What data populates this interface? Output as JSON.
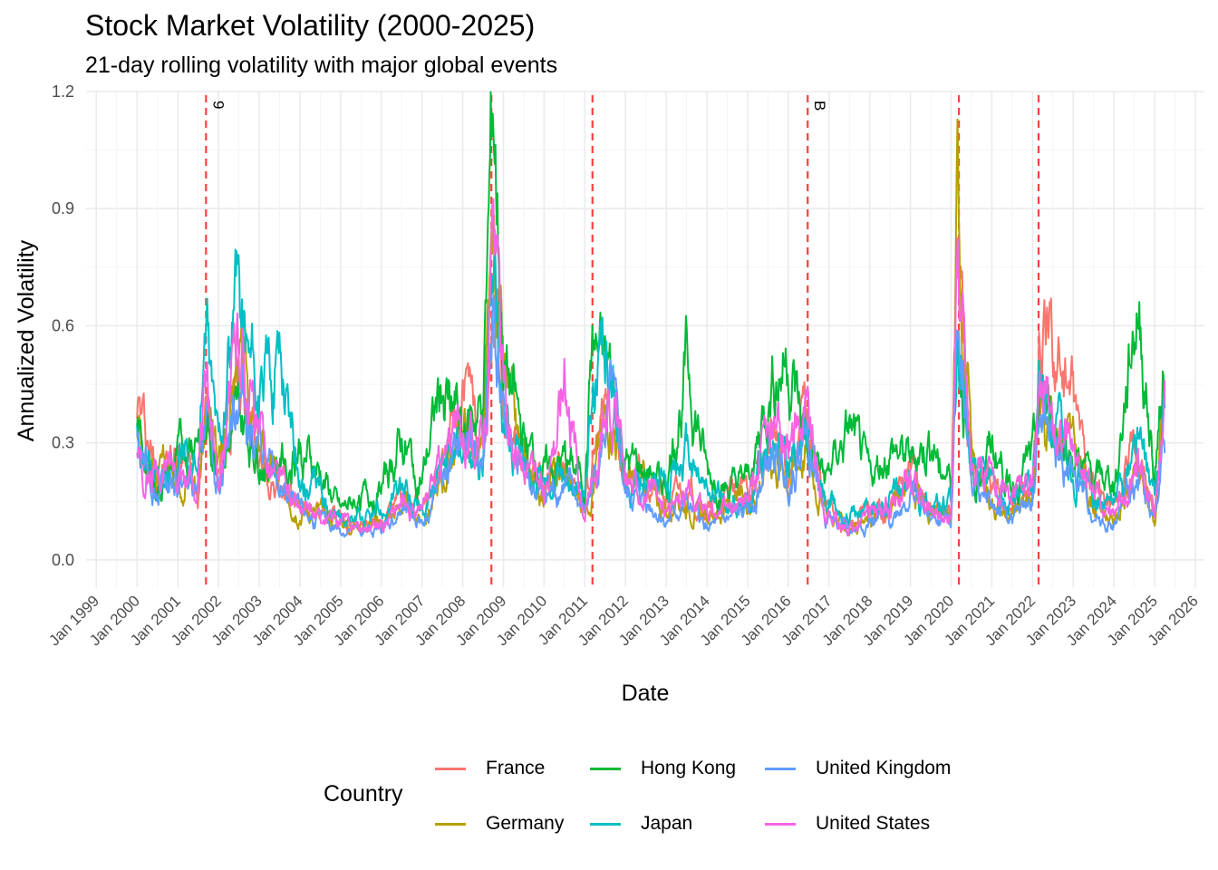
{
  "chart_data": {
    "type": "line",
    "title": "Stock Market Volatility (2000-2025)",
    "subtitle": "21-day rolling volatility with major global events",
    "xlabel": "Date",
    "ylabel": "Annualized Volatility",
    "xlim": [
      "1998-10-01",
      "2026-03-15"
    ],
    "ylim": [
      -0.07,
      1.2
    ],
    "yticks": [
      0.0,
      0.3,
      0.6,
      0.9,
      1.2
    ],
    "ytick_labels": [
      "0.0",
      "0.3",
      "0.6",
      "0.9",
      "1.2"
    ],
    "xticks": [
      "1999-01-01",
      "2000-01-01",
      "2001-01-01",
      "2002-01-01",
      "2003-01-01",
      "2004-01-01",
      "2005-01-01",
      "2006-01-01",
      "2007-01-01",
      "2008-01-01",
      "2009-01-01",
      "2010-01-01",
      "2011-01-01",
      "2012-01-01",
      "2013-01-01",
      "2014-01-01",
      "2015-01-01",
      "2016-01-01",
      "2017-01-01",
      "2018-01-01",
      "2019-01-01",
      "2020-01-01",
      "2021-01-01",
      "2022-01-01",
      "2023-01-01",
      "2024-01-01",
      "2025-01-01",
      "2026-01-01"
    ],
    "xtick_labels": [
      "Jan 1999",
      "Jan 2000",
      "Jan 2001",
      "Jan 2002",
      "Jan 2003",
      "Jan 2004",
      "Jan 2005",
      "Jan 2006",
      "Jan 2007",
      "Jan 2008",
      "Jan 2009",
      "Jan 2010",
      "Jan 2011",
      "Jan 2012",
      "Jan 2013",
      "Jan 2014",
      "Jan 2015",
      "Jan 2016",
      "Jan 2017",
      "Jan 2018",
      "Jan 2019",
      "Jan 2020",
      "Jan 2021",
      "Jan 2022",
      "Jan 2023",
      "Jan 2024",
      "Jan 2025",
      "Jan 2026"
    ],
    "grid": true,
    "legend": {
      "title": "Country",
      "placement": "bottom"
    },
    "event_lines": [
      {
        "date": "2001-09-11",
        "label": "9"
      },
      {
        "date": "2008-09-15",
        "label": ""
      },
      {
        "date": "2011-03-11",
        "label": ""
      },
      {
        "date": "2016-06-23",
        "label": "B"
      },
      {
        "date": "2020-03-11",
        "label": ""
      },
      {
        "date": "2022-02-24",
        "label": ""
      }
    ],
    "event_line_color": "#F8423F",
    "x": [
      "2000-01",
      "2000-07",
      "2001-01",
      "2001-07",
      "2001-09",
      "2002-01",
      "2002-07",
      "2003-01",
      "2003-07",
      "2004-01",
      "2004-07",
      "2005-01",
      "2005-07",
      "2006-01",
      "2006-07",
      "2007-01",
      "2007-07",
      "2008-01",
      "2008-07",
      "2008-10",
      "2009-01",
      "2009-07",
      "2010-01",
      "2010-07",
      "2011-01",
      "2011-03",
      "2011-09",
      "2012-01",
      "2012-07",
      "2013-01",
      "2013-07",
      "2014-01",
      "2014-07",
      "2015-01",
      "2015-08",
      "2016-01",
      "2016-06",
      "2016-12",
      "2017-07",
      "2018-01",
      "2018-07",
      "2019-01",
      "2019-07",
      "2020-01",
      "2020-03",
      "2020-07",
      "2021-01",
      "2021-07",
      "2022-01",
      "2022-03",
      "2022-10",
      "2023-07",
      "2024-01",
      "2024-08",
      "2025-01",
      "2025-04"
    ],
    "series": [
      {
        "name": "France",
        "color": "#F8766D",
        "values": [
          0.41,
          0.22,
          0.28,
          0.2,
          0.42,
          0.22,
          0.48,
          0.25,
          0.18,
          0.14,
          0.12,
          0.1,
          0.09,
          0.1,
          0.16,
          0.12,
          0.25,
          0.42,
          0.3,
          0.72,
          0.4,
          0.22,
          0.2,
          0.25,
          0.16,
          0.22,
          0.45,
          0.2,
          0.22,
          0.15,
          0.18,
          0.12,
          0.16,
          0.18,
          0.3,
          0.25,
          0.38,
          0.14,
          0.09,
          0.12,
          0.14,
          0.22,
          0.14,
          0.12,
          0.85,
          0.25,
          0.18,
          0.13,
          0.2,
          0.56,
          0.5,
          0.18,
          0.14,
          0.3,
          0.12,
          0.52
        ]
      },
      {
        "name": "Germany",
        "color": "#B79F00",
        "values": [
          0.35,
          0.2,
          0.26,
          0.2,
          0.4,
          0.24,
          0.52,
          0.28,
          0.2,
          0.14,
          0.12,
          0.1,
          0.09,
          0.09,
          0.14,
          0.1,
          0.2,
          0.35,
          0.25,
          0.82,
          0.45,
          0.24,
          0.18,
          0.22,
          0.14,
          0.2,
          0.42,
          0.18,
          0.2,
          0.12,
          0.15,
          0.1,
          0.14,
          0.15,
          0.28,
          0.22,
          0.3,
          0.12,
          0.08,
          0.1,
          0.12,
          0.2,
          0.12,
          0.1,
          0.97,
          0.25,
          0.16,
          0.1,
          0.18,
          0.42,
          0.35,
          0.15,
          0.1,
          0.22,
          0.1,
          0.48
        ]
      },
      {
        "name": "Hong Kong",
        "color": "#00BA38",
        "values": [
          0.34,
          0.18,
          0.25,
          0.35,
          0.34,
          0.25,
          0.35,
          0.28,
          0.25,
          0.3,
          0.22,
          0.12,
          0.16,
          0.18,
          0.3,
          0.2,
          0.45,
          0.35,
          0.38,
          1.16,
          0.5,
          0.3,
          0.22,
          0.25,
          0.2,
          0.54,
          0.45,
          0.25,
          0.22,
          0.2,
          0.5,
          0.22,
          0.18,
          0.2,
          0.46,
          0.52,
          0.3,
          0.2,
          0.33,
          0.2,
          0.28,
          0.25,
          0.3,
          0.2,
          0.6,
          0.22,
          0.28,
          0.2,
          0.25,
          0.4,
          0.3,
          0.2,
          0.2,
          0.66,
          0.2,
          0.56
        ]
      },
      {
        "name": "Japan",
        "color": "#00BFC4",
        "values": [
          0.32,
          0.2,
          0.25,
          0.25,
          0.58,
          0.3,
          0.68,
          0.4,
          0.55,
          0.2,
          0.18,
          0.1,
          0.1,
          0.12,
          0.18,
          0.12,
          0.2,
          0.28,
          0.25,
          0.75,
          0.4,
          0.24,
          0.2,
          0.22,
          0.16,
          0.45,
          0.52,
          0.22,
          0.2,
          0.18,
          0.28,
          0.18,
          0.14,
          0.15,
          0.32,
          0.28,
          0.32,
          0.15,
          0.12,
          0.14,
          0.15,
          0.2,
          0.14,
          0.14,
          0.55,
          0.22,
          0.18,
          0.14,
          0.2,
          0.46,
          0.3,
          0.16,
          0.14,
          0.32,
          0.15,
          0.38
        ]
      },
      {
        "name": "United Kingdom",
        "color": "#619CFF",
        "values": [
          0.28,
          0.18,
          0.2,
          0.18,
          0.35,
          0.2,
          0.45,
          0.28,
          0.18,
          0.12,
          0.1,
          0.08,
          0.07,
          0.08,
          0.12,
          0.1,
          0.2,
          0.3,
          0.25,
          0.65,
          0.35,
          0.2,
          0.16,
          0.2,
          0.12,
          0.18,
          0.4,
          0.16,
          0.16,
          0.1,
          0.14,
          0.08,
          0.1,
          0.12,
          0.26,
          0.2,
          0.35,
          0.12,
          0.07,
          0.1,
          0.1,
          0.18,
          0.1,
          0.1,
          0.7,
          0.2,
          0.14,
          0.1,
          0.15,
          0.35,
          0.25,
          0.12,
          0.08,
          0.22,
          0.1,
          0.3
        ]
      },
      {
        "name": "United States",
        "color": "#F564E3",
        "values": [
          0.3,
          0.2,
          0.25,
          0.18,
          0.45,
          0.25,
          0.58,
          0.3,
          0.2,
          0.12,
          0.1,
          0.1,
          0.08,
          0.1,
          0.14,
          0.12,
          0.25,
          0.35,
          0.28,
          0.8,
          0.42,
          0.22,
          0.18,
          0.5,
          0.14,
          0.2,
          0.48,
          0.2,
          0.18,
          0.12,
          0.18,
          0.12,
          0.12,
          0.15,
          0.35,
          0.28,
          0.4,
          0.12,
          0.08,
          0.12,
          0.14,
          0.22,
          0.12,
          0.12,
          0.82,
          0.25,
          0.2,
          0.14,
          0.22,
          0.42,
          0.32,
          0.18,
          0.12,
          0.25,
          0.1,
          0.35
        ]
      }
    ]
  }
}
